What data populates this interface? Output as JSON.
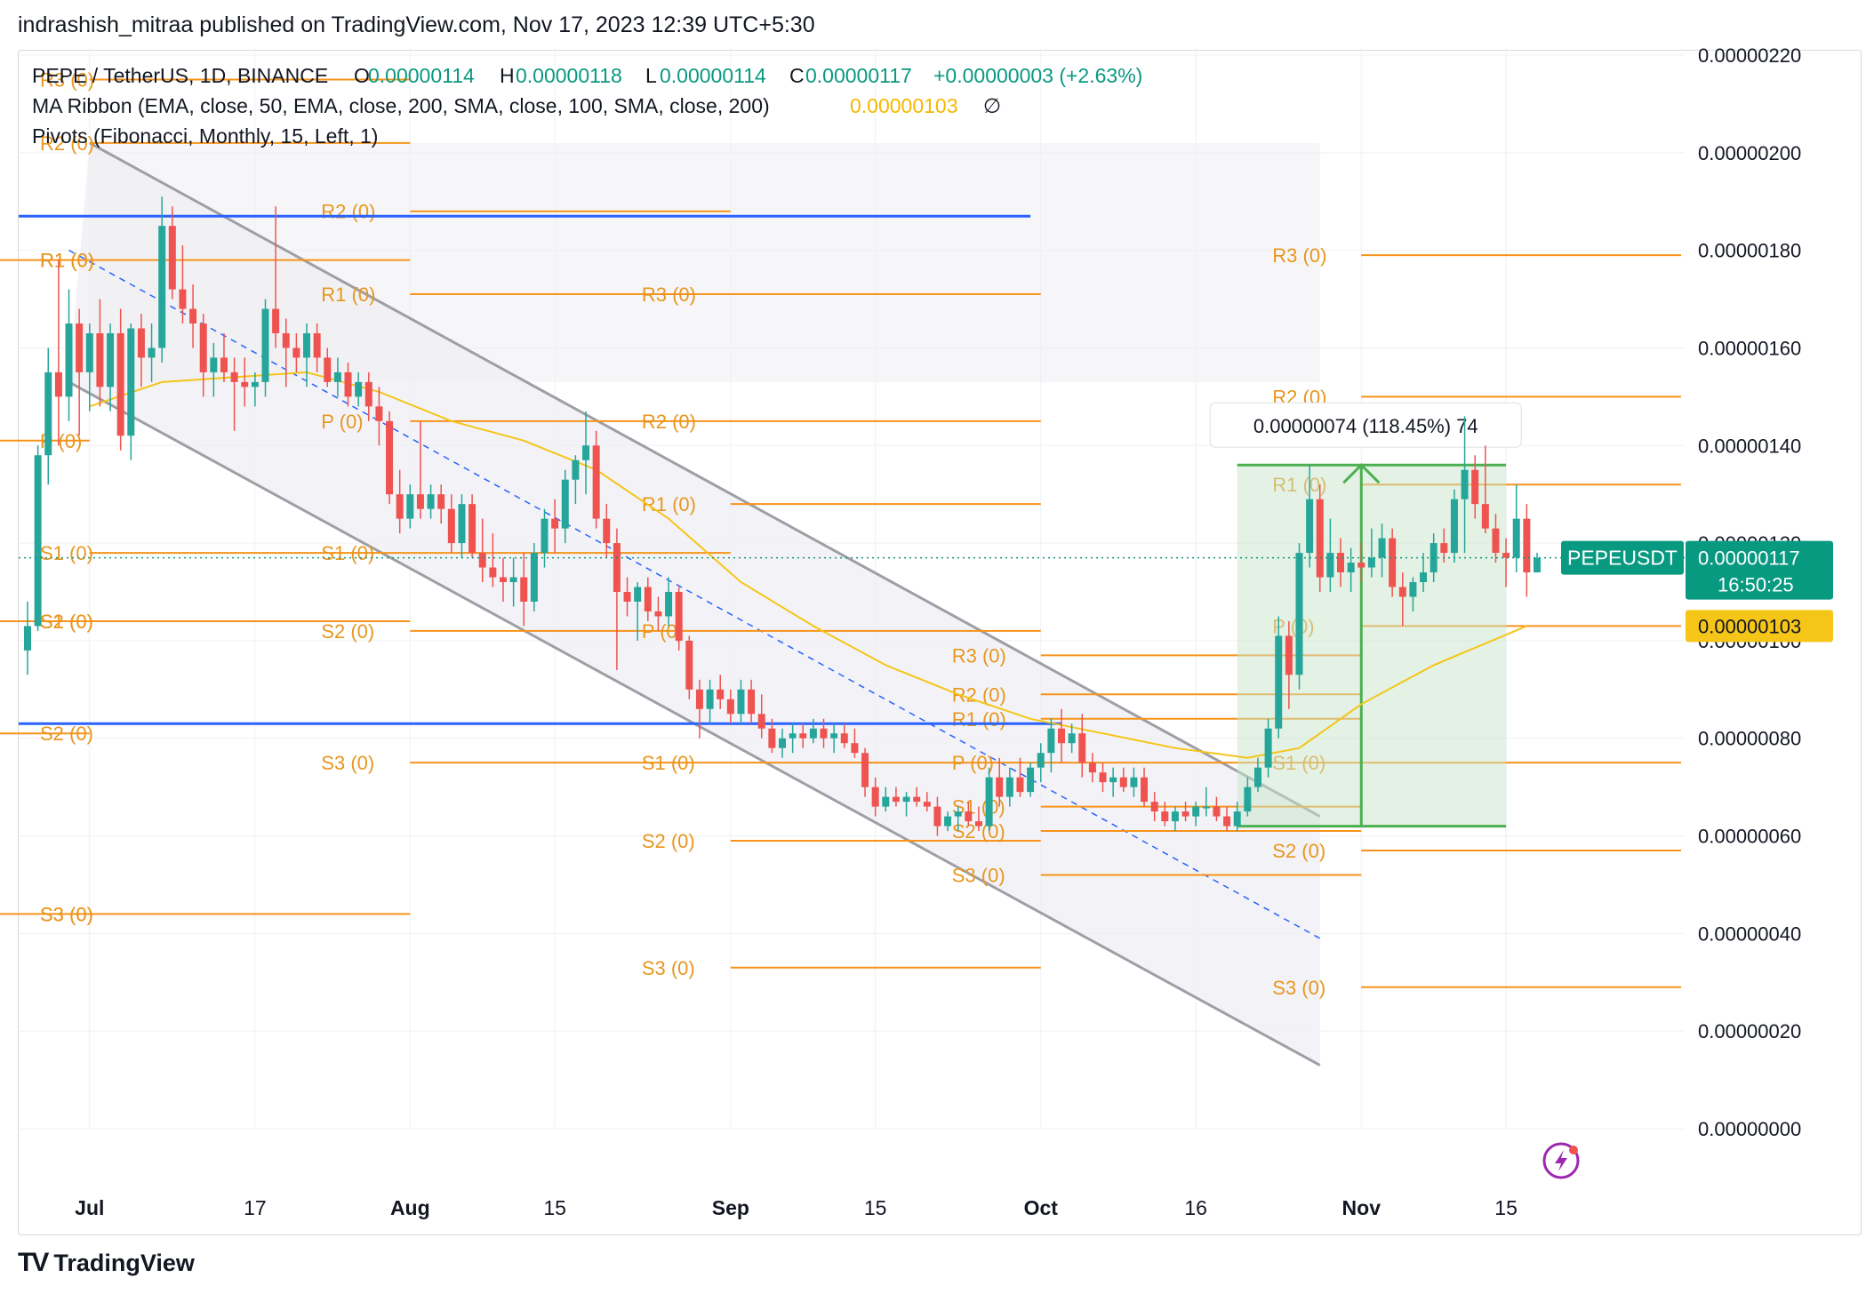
{
  "header": {
    "text": "indrashish_mitraa published on TradingView.com, Nov 17, 2023 12:39 UTC+5:30"
  },
  "legend": {
    "symbol": "PEPE / TetherUS, 1D, BINANCE",
    "o_label": "O",
    "o_value": "0.00000114",
    "h_label": "H",
    "h_value": "0.00000118",
    "l_label": "L",
    "l_value": "0.00000114",
    "c_label": "C",
    "c_value": "0.00000117",
    "change": "+0.00000003 (+2.63%)",
    "ma_ribbon": "MA Ribbon (EMA, close, 50, EMA, close, 200, SMA, close, 100, SMA, close, 200)",
    "ma_value": "0.00000103",
    "ma_null": "∅",
    "pivots": "Pivots (Fibonacci, Monthly, 15, Left, 1)"
  },
  "footer": {
    "brand": "TradingView",
    "logo": "TV"
  },
  "colors": {
    "up": "#26a69a",
    "down": "#ef5350",
    "pivot": "#f7931a",
    "pivot_text": "#e8961f",
    "ma": "#f5c518",
    "channel": "#9e9ea6",
    "channel_fill": "#eeeef3",
    "blue": "#2962ff",
    "measure": "#4caf50",
    "measure_fill": "#c8e6c9",
    "price_tag": "#089981",
    "ma_tag": "#f5c518",
    "grid": "#eff0f3"
  },
  "chart_data": {
    "type": "candlestick",
    "symbol": "PEPEUSDT",
    "timeframe": "1D",
    "ylim": [
      0,
      2.2e-06
    ],
    "y_ticks": [
      "0.00000000",
      "0.00000020",
      "0.00000040",
      "0.00000060",
      "0.00000080",
      "0.00000100",
      "0.00000120",
      "0.00000140",
      "0.00000160",
      "0.00000180",
      "0.00000200",
      "0.00000220"
    ],
    "x_ticks": [
      "Jul",
      "17",
      "Aug",
      "15",
      "Sep",
      "15",
      "Oct",
      "16",
      "Nov",
      "15"
    ],
    "last_price": "0.00000117",
    "countdown": "16:50:25",
    "ma_value_tag": "0.00000103",
    "measure_label": "0.00000074 (118.45%) 74",
    "x_start": "2023-06-25",
    "candles": [
      [
        9.8e-07,
        1.08e-06,
        9.3e-07,
        1.03e-06
      ],
      [
        1.03e-06,
        1.4e-06,
        1.02e-06,
        1.38e-06
      ],
      [
        1.38e-06,
        1.6e-06,
        1.32e-06,
        1.55e-06
      ],
      [
        1.55e-06,
        1.78e-06,
        1.4e-06,
        1.5e-06
      ],
      [
        1.5e-06,
        1.72e-06,
        1.45e-06,
        1.65e-06
      ],
      [
        1.65e-06,
        1.68e-06,
        1.42e-06,
        1.55e-06
      ],
      [
        1.55e-06,
        1.65e-06,
        1.47e-06,
        1.63e-06
      ],
      [
        1.63e-06,
        1.7e-06,
        1.48e-06,
        1.52e-06
      ],
      [
        1.52e-06,
        1.65e-06,
        1.47e-06,
        1.63e-06
      ],
      [
        1.63e-06,
        1.68e-06,
        1.39e-06,
        1.42e-06
      ],
      [
        1.42e-06,
        1.65e-06,
        1.37e-06,
        1.64e-06
      ],
      [
        1.64e-06,
        1.67e-06,
        1.52e-06,
        1.58e-06
      ],
      [
        1.58e-06,
        1.65e-06,
        1.53e-06,
        1.6e-06
      ],
      [
        1.6e-06,
        1.91e-06,
        1.57e-06,
        1.85e-06
      ],
      [
        1.85e-06,
        1.89e-06,
        1.7e-06,
        1.72e-06
      ],
      [
        1.72e-06,
        1.81e-06,
        1.65e-06,
        1.68e-06
      ],
      [
        1.68e-06,
        1.73e-06,
        1.6e-06,
        1.65e-06
      ],
      [
        1.65e-06,
        1.67e-06,
        1.5e-06,
        1.55e-06
      ],
      [
        1.55e-06,
        1.61e-06,
        1.5e-06,
        1.58e-06
      ],
      [
        1.58e-06,
        1.63e-06,
        1.53e-06,
        1.55e-06
      ],
      [
        1.55e-06,
        1.58e-06,
        1.43e-06,
        1.53e-06
      ],
      [
        1.53e-06,
        1.58e-06,
        1.48e-06,
        1.52e-06
      ],
      [
        1.52e-06,
        1.55e-06,
        1.48e-06,
        1.53e-06
      ],
      [
        1.53e-06,
        1.7e-06,
        1.5e-06,
        1.68e-06
      ],
      [
        1.68e-06,
        1.89e-06,
        1.6e-06,
        1.63e-06
      ],
      [
        1.63e-06,
        1.66e-06,
        1.52e-06,
        1.6e-06
      ],
      [
        1.6e-06,
        1.63e-06,
        1.55e-06,
        1.58e-06
      ],
      [
        1.58e-06,
        1.65e-06,
        1.52e-06,
        1.63e-06
      ],
      [
        1.63e-06,
        1.65e-06,
        1.55e-06,
        1.58e-06
      ],
      [
        1.58e-06,
        1.6e-06,
        1.52e-06,
        1.53e-06
      ],
      [
        1.53e-06,
        1.58e-06,
        1.5e-06,
        1.55e-06
      ],
      [
        1.55e-06,
        1.57e-06,
        1.48e-06,
        1.5e-06
      ],
      [
        1.5e-06,
        1.55e-06,
        1.48e-06,
        1.53e-06
      ],
      [
        1.53e-06,
        1.55e-06,
        1.45e-06,
        1.48e-06
      ],
      [
        1.48e-06,
        1.52e-06,
        1.4e-06,
        1.45e-06
      ],
      [
        1.45e-06,
        1.47e-06,
        1.28e-06,
        1.3e-06
      ],
      [
        1.3e-06,
        1.35e-06,
        1.22e-06,
        1.25e-06
      ],
      [
        1.25e-06,
        1.32e-06,
        1.23e-06,
        1.3e-06
      ],
      [
        1.3e-06,
        1.45e-06,
        1.25e-06,
        1.27e-06
      ],
      [
        1.27e-06,
        1.32e-06,
        1.25e-06,
        1.3e-06
      ],
      [
        1.3e-06,
        1.32e-06,
        1.24e-06,
        1.27e-06
      ],
      [
        1.27e-06,
        1.3e-06,
        1.18e-06,
        1.2e-06
      ],
      [
        1.2e-06,
        1.3e-06,
        1.17e-06,
        1.28e-06
      ],
      [
        1.28e-06,
        1.3e-06,
        1.17e-06,
        1.18e-06
      ],
      [
        1.18e-06,
        1.25e-06,
        1.12e-06,
        1.15e-06
      ],
      [
        1.15e-06,
        1.22e-06,
        1.11e-06,
        1.13e-06
      ],
      [
        1.13e-06,
        1.17e-06,
        1.08e-06,
        1.12e-06
      ],
      [
        1.12e-06,
        1.17e-06,
        1.07e-06,
        1.13e-06
      ],
      [
        1.13e-06,
        1.18e-06,
        1.03e-06,
        1.08e-06
      ],
      [
        1.08e-06,
        1.2e-06,
        1.06e-06,
        1.18e-06
      ],
      [
        1.18e-06,
        1.27e-06,
        1.15e-06,
        1.25e-06
      ],
      [
        1.25e-06,
        1.29e-06,
        1.18e-06,
        1.23e-06
      ],
      [
        1.23e-06,
        1.35e-06,
        1.2e-06,
        1.33e-06
      ],
      [
        1.33e-06,
        1.38e-06,
        1.28e-06,
        1.37e-06
      ],
      [
        1.37e-06,
        1.47e-06,
        1.3e-06,
        1.4e-06
      ],
      [
        1.4e-06,
        1.43e-06,
        1.23e-06,
        1.25e-06
      ],
      [
        1.25e-06,
        1.28e-06,
        1.17e-06,
        1.2e-06
      ],
      [
        1.2e-06,
        1.23e-06,
        9.4e-07,
        1.1e-06
      ],
      [
        1.1e-06,
        1.13e-06,
        1.05e-06,
        1.08e-06
      ],
      [
        1.08e-06,
        1.12e-06,
        1e-06,
        1.11e-06
      ],
      [
        1.11e-06,
        1.13e-06,
        1.04e-06,
        1.06e-06
      ],
      [
        1.06e-06,
        1.09e-06,
        1.02e-06,
        1.05e-06
      ],
      [
        1.05e-06,
        1.13e-06,
        1.03e-06,
        1.1e-06
      ],
      [
        1.1e-06,
        1.11e-06,
        9.8e-07,
        1e-06
      ],
      [
        1e-06,
        1.01e-06,
        8.8e-07,
        9e-07
      ],
      [
        9e-07,
        9.2e-07,
        8e-07,
        8.6e-07
      ],
      [
        8.6e-07,
        9.2e-07,
        8.3e-07,
        9e-07
      ],
      [
        9e-07,
        9.3e-07,
        8.6e-07,
        8.8e-07
      ],
      [
        8.8e-07,
        9e-07,
        8.3e-07,
        8.5e-07
      ],
      [
        8.5e-07,
        9.2e-07,
        8.3e-07,
        9e-07
      ],
      [
        9e-07,
        9.2e-07,
        8.3e-07,
        8.5e-07
      ],
      [
        8.5e-07,
        8.9e-07,
        8e-07,
        8.2e-07
      ],
      [
        8.2e-07,
        8.4e-07,
        7.7e-07,
        7.8e-07
      ],
      [
        7.8e-07,
        8.2e-07,
        7.6e-07,
        8e-07
      ],
      [
        8e-07,
        8.3e-07,
        7.7e-07,
        8.1e-07
      ],
      [
        8.1e-07,
        8.3e-07,
        7.8e-07,
        8e-07
      ],
      [
        8e-07,
        8.4e-07,
        7.9e-07,
        8.2e-07
      ],
      [
        8.2e-07,
        8.4e-07,
        7.8e-07,
        8e-07
      ],
      [
        8e-07,
        8.3e-07,
        7.7e-07,
        8.1e-07
      ],
      [
        8.1e-07,
        8.3e-07,
        7.8e-07,
        7.9e-07
      ],
      [
        7.9e-07,
        8.2e-07,
        7.6e-07,
        7.7e-07
      ],
      [
        7.7e-07,
        7.8e-07,
        6.8e-07,
        7e-07
      ],
      [
        7e-07,
        7.2e-07,
        6.4e-07,
        6.6e-07
      ],
      [
        6.6e-07,
        7e-07,
        6.5e-07,
        6.8e-07
      ],
      [
        6.8e-07,
        7e-07,
        6.6e-07,
        6.7e-07
      ],
      [
        6.7e-07,
        6.9e-07,
        6.4e-07,
        6.8e-07
      ],
      [
        6.8e-07,
        7e-07,
        6.6e-07,
        6.7e-07
      ],
      [
        6.7e-07,
        6.9e-07,
        6.5e-07,
        6.6e-07
      ],
      [
        6.6e-07,
        6.8e-07,
        6e-07,
        6.2e-07
      ],
      [
        6.2e-07,
        6.5e-07,
        6.1e-07,
        6.4e-07
      ],
      [
        6.4e-07,
        6.6e-07,
        6.1e-07,
        6.5e-07
      ],
      [
        6.5e-07,
        6.7e-07,
        6.2e-07,
        6.3e-07
      ],
      [
        6.3e-07,
        6.6e-07,
        6.1e-07,
        6.2e-07
      ],
      [
        6.2e-07,
        7.4e-07,
        6.1e-07,
        7.2e-07
      ],
      [
        7.2e-07,
        7.6e-07,
        6.6e-07,
        6.8e-07
      ],
      [
        6.8e-07,
        7.4e-07,
        6.6e-07,
        7.2e-07
      ],
      [
        7.2e-07,
        7.6e-07,
        6.8e-07,
        6.9e-07
      ],
      [
        6.9e-07,
        7.5e-07,
        6.8e-07,
        7.4e-07
      ],
      [
        7.4e-07,
        7.9e-07,
        7.1e-07,
        7.7e-07
      ],
      [
        7.7e-07,
        8.4e-07,
        7.3e-07,
        8.2e-07
      ],
      [
        8.2e-07,
        8.6e-07,
        7.5e-07,
        7.9e-07
      ],
      [
        7.9e-07,
        8.3e-07,
        7.7e-07,
        8.1e-07
      ],
      [
        8.1e-07,
        8.5e-07,
        7.2e-07,
        7.5e-07
      ],
      [
        7.5e-07,
        7.7e-07,
        7.1e-07,
        7.3e-07
      ],
      [
        7.3e-07,
        7.5e-07,
        6.9e-07,
        7.1e-07
      ],
      [
        7.1e-07,
        7.4e-07,
        6.8e-07,
        7.2e-07
      ],
      [
        7.2e-07,
        7.4e-07,
        6.9e-07,
        7e-07
      ],
      [
        7e-07,
        7.4e-07,
        6.8e-07,
        7.2e-07
      ],
      [
        7.2e-07,
        7.4e-07,
        6.6e-07,
        6.7e-07
      ],
      [
        6.7e-07,
        6.9e-07,
        6.3e-07,
        6.5e-07
      ],
      [
        6.5e-07,
        6.7e-07,
        6.2e-07,
        6.3e-07
      ],
      [
        6.3e-07,
        6.6e-07,
        6.1e-07,
        6.5e-07
      ],
      [
        6.5e-07,
        6.7e-07,
        6.3e-07,
        6.4e-07
      ],
      [
        6.4e-07,
        6.7e-07,
        6.2e-07,
        6.6e-07
      ],
      [
        6.6e-07,
        7e-07,
        6.4e-07,
        6.6e-07
      ],
      [
        6.6e-07,
        6.8e-07,
        6.3e-07,
        6.4e-07
      ],
      [
        6.4e-07,
        6.6e-07,
        6.1e-07,
        6.2e-07
      ],
      [
        6.2e-07,
        6.7e-07,
        6.1e-07,
        6.5e-07
      ],
      [
        6.5e-07,
        7.2e-07,
        6.4e-07,
        7e-07
      ],
      [
        7e-07,
        7.6e-07,
        6.9e-07,
        7.4e-07
      ],
      [
        7.4e-07,
        8.4e-07,
        7.2e-07,
        8.2e-07
      ],
      [
        8.2e-07,
        1.05e-06,
        8e-07,
        1.01e-06
      ],
      [
        1.01e-06,
        1.04e-06,
        8.6e-07,
        9.3e-07
      ],
      [
        9.3e-07,
        1.2e-06,
        9e-07,
        1.18e-06
      ],
      [
        1.18e-06,
        1.36e-06,
        1.15e-06,
        1.29e-06
      ],
      [
        1.29e-06,
        1.32e-06,
        1.1e-06,
        1.13e-06
      ],
      [
        1.13e-06,
        1.25e-06,
        1.1e-06,
        1.18e-06
      ],
      [
        1.18e-06,
        1.21e-06,
        1.11e-06,
        1.14e-06
      ],
      [
        1.14e-06,
        1.19e-06,
        1.1e-06,
        1.16e-06
      ],
      [
        1.16e-06,
        1.2e-06,
        1.12e-06,
        1.15e-06
      ],
      [
        1.15e-06,
        1.23e-06,
        1.13e-06,
        1.17e-06
      ],
      [
        1.17e-06,
        1.24e-06,
        1.13e-06,
        1.21e-06
      ],
      [
        1.21e-06,
        1.23e-06,
        1.09e-06,
        1.11e-06
      ],
      [
        1.11e-06,
        1.14e-06,
        1.03e-06,
        1.09e-06
      ],
      [
        1.09e-06,
        1.13e-06,
        1.06e-06,
        1.12e-06
      ],
      [
        1.12e-06,
        1.18e-06,
        1.1e-06,
        1.14e-06
      ],
      [
        1.14e-06,
        1.22e-06,
        1.12e-06,
        1.2e-06
      ],
      [
        1.2e-06,
        1.23e-06,
        1.16e-06,
        1.18e-06
      ],
      [
        1.18e-06,
        1.31e-06,
        1.16e-06,
        1.29e-06
      ],
      [
        1.29e-06,
        1.46e-06,
        1.18e-06,
        1.35e-06
      ],
      [
        1.35e-06,
        1.38e-06,
        1.25e-06,
        1.28e-06
      ],
      [
        1.28e-06,
        1.4e-06,
        1.22e-06,
        1.23e-06
      ],
      [
        1.23e-06,
        1.26e-06,
        1.16e-06,
        1.18e-06
      ],
      [
        1.18e-06,
        1.21e-06,
        1.11e-06,
        1.17e-06
      ],
      [
        1.17e-06,
        1.32e-06,
        1.14e-06,
        1.25e-06
      ],
      [
        1.25e-06,
        1.28e-06,
        1.09e-06,
        1.14e-06
      ],
      [
        1.14e-06,
        1.18e-06,
        1.14e-06,
        1.17e-06
      ]
    ],
    "ma_line": [
      [
        "2023-07-01",
        1.48e-06
      ],
      [
        "2023-07-08",
        1.53e-06
      ],
      [
        "2023-07-15",
        1.54e-06
      ],
      [
        "2023-07-22",
        1.55e-06
      ],
      [
        "2023-07-29",
        1.51e-06
      ],
      [
        "2023-08-05",
        1.45e-06
      ],
      [
        "2023-08-12",
        1.41e-06
      ],
      [
        "2023-08-19",
        1.35e-06
      ],
      [
        "2023-08-26",
        1.25e-06
      ],
      [
        "2023-09-02",
        1.12e-06
      ],
      [
        "2023-09-09",
        1.03e-06
      ],
      [
        "2023-09-16",
        9.5e-07
      ],
      [
        "2023-09-23",
        8.9e-07
      ],
      [
        "2023-09-30",
        8.4e-07
      ],
      [
        "2023-10-07",
        8.1e-07
      ],
      [
        "2023-10-14",
        7.8e-07
      ],
      [
        "2023-10-21",
        7.6e-07
      ],
      [
        "2023-10-26",
        7.8e-07
      ],
      [
        "2023-11-01",
        8.7e-07
      ],
      [
        "2023-11-08",
        9.5e-07
      ],
      [
        "2023-11-17",
        1.03e-06
      ]
    ],
    "channel": {
      "upper": [
        [
          "2023-07-01",
          2.02e-06
        ],
        [
          "2023-10-28",
          6.4e-07
        ]
      ],
      "lower": [
        [
          "2023-06-29",
          1.53e-06
        ],
        [
          "2023-10-28",
          1.3e-07
        ]
      ],
      "mid": [
        [
          "2023-06-29",
          1.8e-06
        ],
        [
          "2023-10-28",
          3.9e-07
        ]
      ],
      "fill_end": "2023-10-28"
    },
    "blue_lines": [
      {
        "from": "2023-06-20",
        "to": "2023-09-30",
        "value": 1.87e-06
      },
      {
        "from": "2023-06-20",
        "to": "2023-10-03",
        "value": 8.3e-07
      }
    ],
    "measure": {
      "from": "2023-10-20",
      "to": "2023-11-15",
      "low": 6.2e-07,
      "high": 1.36e-06,
      "arrow_x": "2023-11-01"
    },
    "pivot_periods": [
      {
        "from": "2023-06-20",
        "to": "2023-07-01",
        "levels": {
          "R1 (0)": 1.78e-06,
          "P (0)": 1.41e-06,
          "S1 (0)": 1.04e-06,
          "S2 (0)": 8.1e-07,
          "S3 (0)": 4.4e-07
        }
      },
      {
        "from": "2023-07-01",
        "to": "2023-08-01",
        "levels": {
          "R3 (0)": 2.15e-06,
          "R2 (0)": 2.02e-06,
          "R1 (0)": 1.78e-06,
          "S1 (0)": 1.18e-06,
          "S2 (0)": 1.04e-06,
          "S3 (0)": 4.4e-07
        }
      },
      {
        "from": "2023-08-01",
        "to": "2023-09-01",
        "levels": {
          "R2 (0)": 1.88e-06,
          "R1 (0)": 1.71e-06,
          "P (0)": 1.45e-06,
          "S1 (0)": 1.18e-06,
          "S2 (0)": 1.02e-06,
          "S3 (0)": 7.5e-07
        }
      },
      {
        "from": "2023-09-01",
        "to": "2023-10-01",
        "levels": {
          "R3 (0)": 1.71e-06,
          "R2 (0)": 1.45e-06,
          "R1 (0)": 1.28e-06,
          "P (0)": 1.02e-06,
          "S1 (0)": 7.5e-07,
          "S2 (0)": 5.9e-07,
          "S3 (0)": 3.3e-07
        }
      },
      {
        "from": "2023-10-01",
        "to": "2023-11-01",
        "levels": {
          "R3 (0)": 9.7e-07,
          "R2 (0)": 8.9e-07,
          "R1 (0)": 8.4e-07,
          "P (0)": 7.5e-07,
          "S1 (0)": 6.6e-07,
          "S2 (0)": 6.1e-07,
          "S3 (0)": 5.2e-07
        }
      },
      {
        "from": "2023-11-01",
        "to": "2023-12-03",
        "levels": {
          "R3 (0)": 1.79e-06,
          "R2 (0)": 1.5e-06,
          "R1 (0)": 1.32e-06,
          "P (0)": 1.03e-06,
          "S1 (0)": 7.5e-07,
          "S2 (0)": 5.7e-07,
          "S3 (0)": 2.9e-07
        }
      }
    ]
  }
}
